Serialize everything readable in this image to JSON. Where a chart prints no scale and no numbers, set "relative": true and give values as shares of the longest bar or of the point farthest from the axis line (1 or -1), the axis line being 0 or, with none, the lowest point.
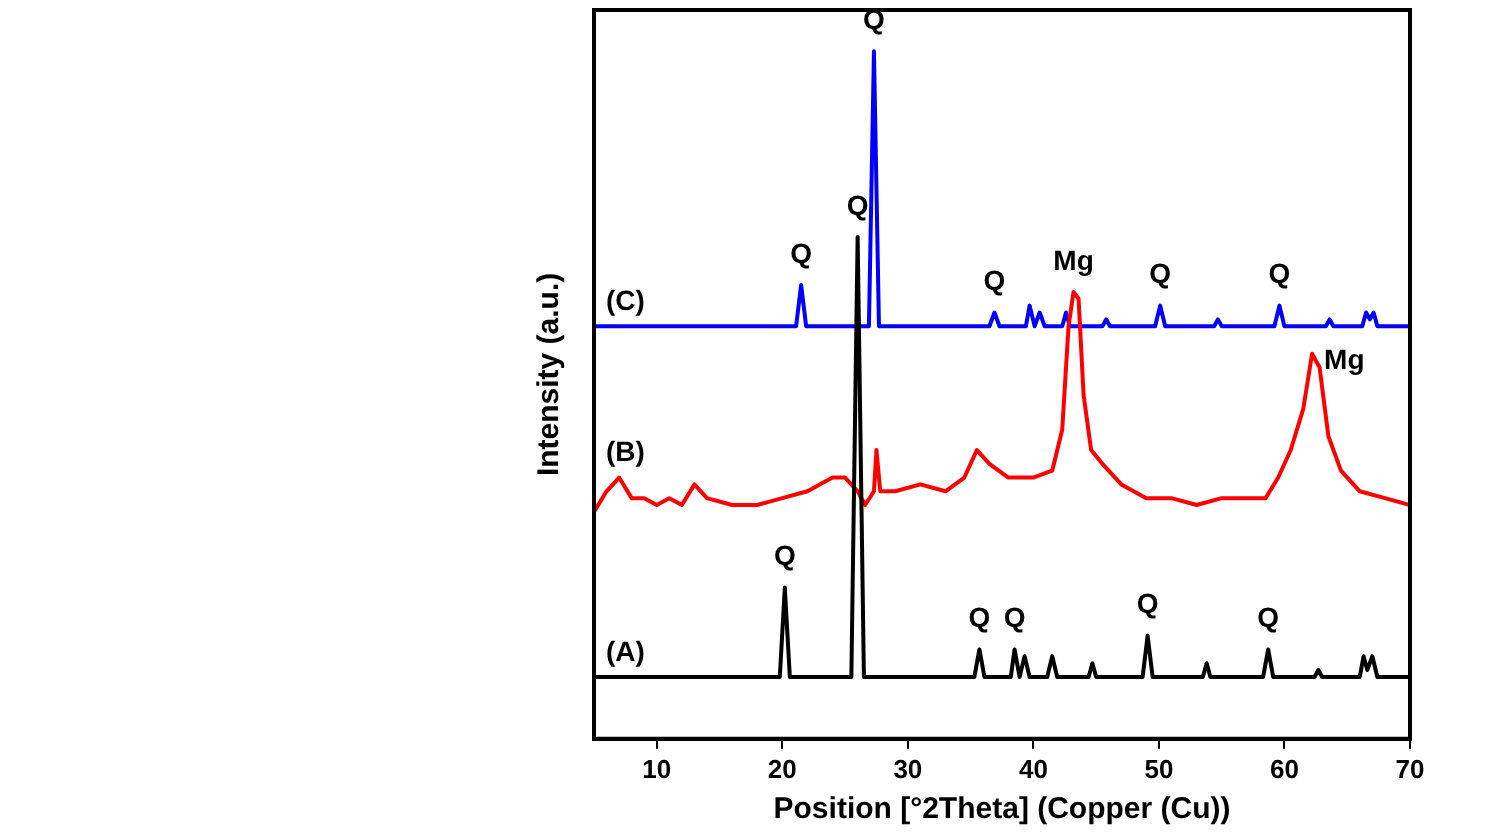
{
  "chart_data": {
    "type": "line",
    "relative": true,
    "xlabel": "Position [°2Theta] (Copper (Cu))",
    "ylabel": "Intensity (a.u.)",
    "xlim": [
      5,
      70
    ],
    "xticks": [
      10,
      20,
      30,
      40,
      50,
      60,
      70
    ],
    "marker": "none",
    "line_style": "solid",
    "legend": false,
    "series": [
      {
        "name": "(A)",
        "color": "#000000",
        "x": [
          5,
          11,
          19.8,
          20.2,
          20.6,
          25.5,
          26.0,
          26.5,
          27.5,
          35.3,
          35.7,
          36.1,
          38.2,
          38.5,
          38.9,
          39.3,
          39.7,
          41.1,
          41.5,
          41.9,
          44.4,
          44.7,
          45.0,
          48.7,
          49.1,
          49.5,
          53.5,
          53.8,
          54.1,
          58.3,
          58.7,
          59.1,
          62.4,
          62.7,
          63.0,
          66,
          66.3,
          66.6,
          67,
          67.4,
          70
        ],
        "values": [
          0.09,
          0.09,
          0.09,
          0.22,
          0.09,
          0.09,
          0.73,
          0.09,
          0.09,
          0.09,
          0.13,
          0.09,
          0.09,
          0.13,
          0.09,
          0.12,
          0.09,
          0.09,
          0.12,
          0.09,
          0.09,
          0.11,
          0.09,
          0.09,
          0.15,
          0.09,
          0.09,
          0.11,
          0.09,
          0.09,
          0.13,
          0.09,
          0.09,
          0.1,
          0.09,
          0.09,
          0.12,
          0.1,
          0.12,
          0.09,
          0.09
        ]
      },
      {
        "name": "(B)",
        "color": "#ff0000",
        "x": [
          5,
          6,
          7,
          8,
          9,
          10,
          11,
          12,
          13,
          14,
          16,
          18,
          20,
          22,
          24,
          25,
          26,
          26.6,
          27.3,
          27.5,
          27.8,
          29,
          31,
          33,
          34.5,
          35.5,
          36.5,
          38,
          40,
          41.5,
          42.3,
          42.8,
          43.2,
          43.6,
          44,
          44.6,
          45.5,
          47,
          49,
          51,
          53,
          55,
          57,
          58.5,
          59.5,
          60.5,
          61.5,
          62.2,
          62.8,
          63.5,
          64.5,
          66,
          68,
          70
        ],
        "values": [
          0.33,
          0.36,
          0.38,
          0.35,
          0.35,
          0.34,
          0.35,
          0.34,
          0.37,
          0.35,
          0.34,
          0.34,
          0.35,
          0.36,
          0.38,
          0.38,
          0.36,
          0.34,
          0.36,
          0.42,
          0.36,
          0.36,
          0.37,
          0.36,
          0.38,
          0.42,
          0.4,
          0.38,
          0.38,
          0.39,
          0.45,
          0.6,
          0.65,
          0.64,
          0.5,
          0.42,
          0.4,
          0.37,
          0.35,
          0.35,
          0.34,
          0.35,
          0.35,
          0.35,
          0.38,
          0.42,
          0.48,
          0.56,
          0.54,
          0.44,
          0.39,
          0.36,
          0.35,
          0.34
        ]
      },
      {
        "name": "(C)",
        "color": "#0000ff",
        "x": [
          5,
          21.1,
          21.5,
          21.9,
          26.9,
          27.3,
          27.7,
          36.5,
          36.9,
          37.3,
          39.4,
          39.7,
          40.1,
          40.5,
          40.9,
          42.3,
          42.6,
          42.9,
          45.5,
          45.8,
          46.1,
          49.7,
          50.1,
          50.5,
          54.4,
          54.7,
          55,
          59.2,
          59.6,
          60,
          63.3,
          63.6,
          63.9,
          66.2,
          66.5,
          66.8,
          67.1,
          67.4,
          70
        ],
        "values": [
          0.6,
          0.6,
          0.66,
          0.6,
          0.6,
          1,
          0.6,
          0.6,
          0.62,
          0.6,
          0.6,
          0.63,
          0.6,
          0.62,
          0.6,
          0.6,
          0.62,
          0.6,
          0.6,
          0.61,
          0.6,
          0.6,
          0.63,
          0.6,
          0.6,
          0.61,
          0.6,
          0.6,
          0.63,
          0.6,
          0.6,
          0.61,
          0.6,
          0.6,
          0.62,
          0.61,
          0.62,
          0.6,
          0.6
        ]
      }
    ],
    "annotations": [
      {
        "text": "Q",
        "x": 20.2,
        "y": 0.22
      },
      {
        "text": "Q",
        "x": 26.0,
        "y": 0.73
      },
      {
        "text": "Q",
        "x": 35.7,
        "y": 0.13
      },
      {
        "text": "Q",
        "x": 38.5,
        "y": 0.13
      },
      {
        "text": "Q",
        "x": 49.1,
        "y": 0.15
      },
      {
        "text": "Q",
        "x": 58.7,
        "y": 0.13
      },
      {
        "text": "Q",
        "x": 21.5,
        "y": 0.66
      },
      {
        "text": "Q",
        "x": 27.3,
        "y": 1
      },
      {
        "text": "Q",
        "x": 36.9,
        "y": 0.62
      },
      {
        "text": "Q",
        "x": 50.1,
        "y": 0.63
      },
      {
        "text": "Q",
        "x": 59.6,
        "y": 0.63
      },
      {
        "text": "Mg",
        "x": 43.2,
        "y": 0.65
      },
      {
        "text": "Mg",
        "x": 62.2,
        "y": 0.56
      }
    ]
  }
}
